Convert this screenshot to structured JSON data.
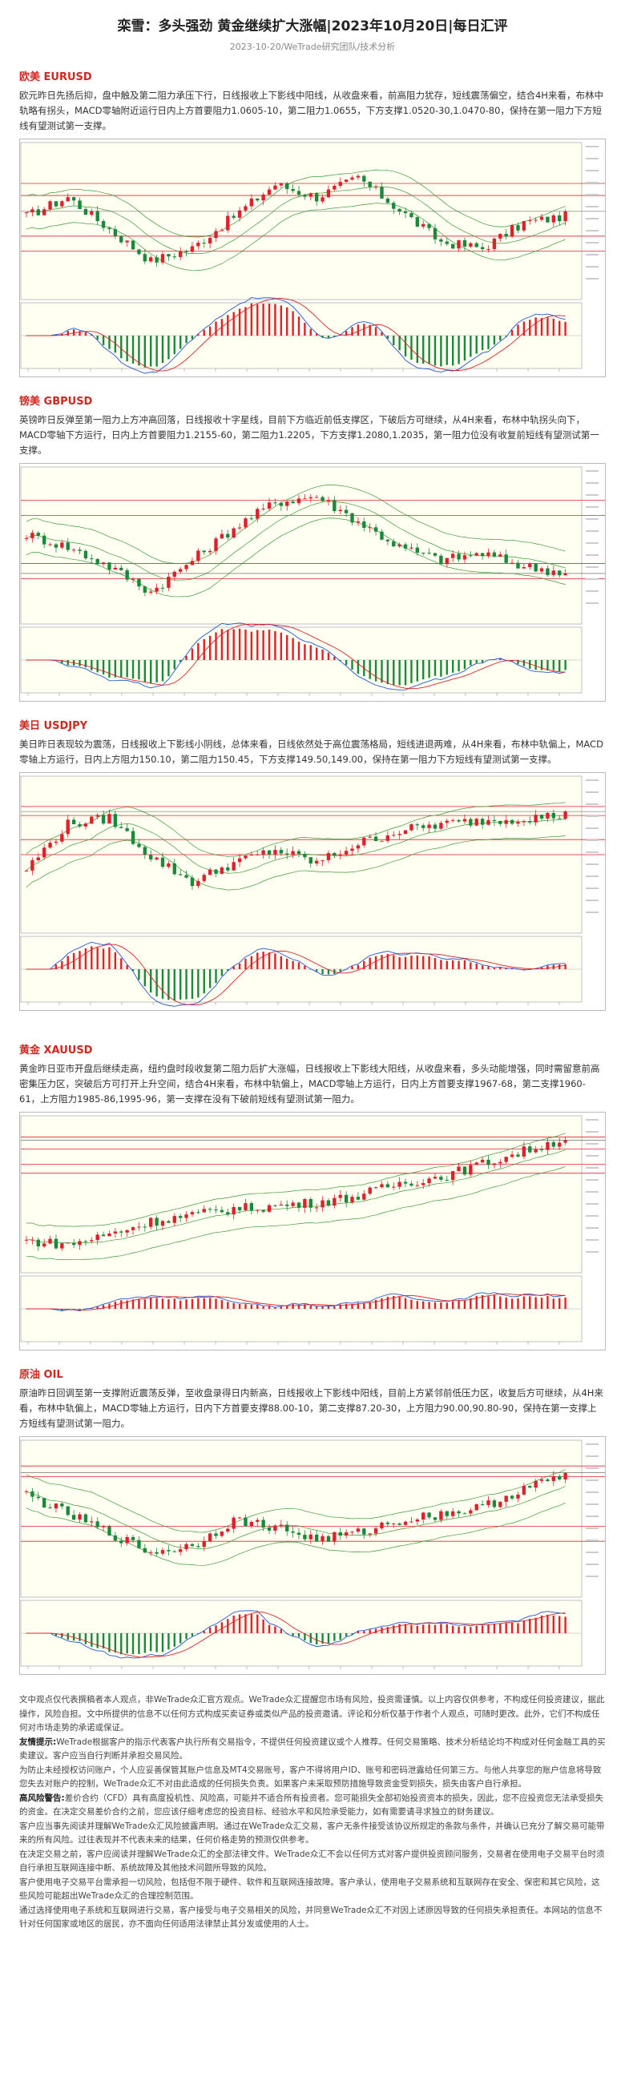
{
  "header": {
    "title": "栾雪：多头强劲 黄金继续扩大涨幅|2023年10月20日|每日汇评",
    "subtitle": "2023-10-20/WeTrade研究团队/技术分析"
  },
  "sections": [
    {
      "heading": "欧美 EURUSD",
      "text": "欧元昨日先扬后抑，盘中触及第二阻力承压下行，日线报收上下影线中阳线，从收盘来看，前高阻力犹存，短线震荡偏空，结合4H来看，布林中轨略有拐头，MACD零轴附近运行日内上方首要阻力1.0605-10，第二阻力1.0655，下方支撑1.0520-30,1.0470-80，保持在第一阻力下方短线有望测试第一支撑。"
    },
    {
      "heading": "镑美 GBPUSD",
      "text": "英镑昨日反弹至第一阻力上方冲高回落，日线报收十字星线，目前下方临近前低支撑区，下破后方可继续，从4H来看，布林中轨拐头向下，MACD零轴下方运行，日内上方首要阻力1.2155-60，第二阻力1.2205，下方支撑1.2080,1.2035，第一阻力位没有收复前短线有望测试第一支撑。"
    },
    {
      "heading": "美日 USDJPY",
      "text": "美日昨日表现较为震荡，日线报收上下影线小阴线，总体来看，日线依然处于高位震荡格局，短线进退两难，从4H来看，布林中轨偏上，MACD零轴上方运行，日内上方阻力150.10，第二阻力150.45，下方支撑149.50,149.00，保持在第一阻力下方短线有望测试第一支撑。"
    },
    {
      "heading": "黄金 XAUUSD",
      "text": "黄金昨日亚市开盘后继续走高，纽约盘时段收复第二阻力后扩大涨幅，日线报收上下影线大阳线，从收盘来看，多头动能增强，同时需留意前高密集压力区，突破后方可打开上升空间，结合4H来看，布林中轨偏上，MACD零轴上方运行，日内上方首要支撑1967-68，第二支撑1960-61，上方阻力1985-86,1995-96，第一支撑在没有下破前短线有望测试第一阻力。"
    },
    {
      "heading": "原油 OIL",
      "text": "原油昨日回调至第一支撑附近震荡反弹，至收盘录得日内新高，日线报收上下影线中阳线，目前上方紧邻前低压力区，收复后方可继续，从4H来看，布林中轨偏上，MACD零轴上方运行，日内下方首要支撑88.00-10，第二支撑87.20-30，上方阻力90.00,90.80-90，保持在第一支撑上方短线有望测试第一阻力。"
    }
  ],
  "disclaimer": [
    "文中观点仅代表撰稿者本人观点，非WeTrade众汇官方观点。WeTrade众汇提醒您市场有风险，投资需谨慎。以上内容仅供参考，不构成任何投资建议，据此操作，风险自担。文中所提供的信息不以任何方式构成买卖证券或类似产品的投资邀请。评论和分析仅基于作者个人观点，可随时更改。此外，它们不构成任何对市场走势的承诺或保证。",
    {
      "label": "友情提示:",
      "text": "WeTrade根据客户的指示代表客户执行所有交易指令，不提供任何投资建议或个人推荐。任何交易策略、技术分析结论均不构成对任何金融工具的买卖建议。客户应当自行判断并承担交易风险。"
    },
    "为防止未经授权访问账户，个人应妥善保管其账户信息及MT4交易账号，客户不得将用户ID、账号和密码泄露给任何第三方。与他人共享您的账户信息将导致您失去对账户的控制，WeTrade众汇不对由此造成的任何损失负责。如果客户未采取预防措施导致资金受到损失，损失由客户自行承担。",
    {
      "label": "高风险警告:",
      "text": "差价合约（CFD）具有高度投机性、风险高，可能并不适合所有投资者。您可能损失全部初始投资资本的损失，因此，您不应投资您无法承受损失的资金。在决定交易差价合约之前，您应该仔细考虑您的投资目标、经验水平和风险承受能力，如有需要请寻求独立的财务建议。"
    },
    "客户应当事先阅读并理解WeTrade众汇风险披露声明。通过在WeTrade众汇交易，客户无条件接受该协议所规定的条款与条件，并确认已充分了解交易可能带来的所有风险。过往表现并不代表未来的结果，任何价格走势的预测仅供参考。",
    "在决定交易之前，客户应阅读并理解WeTrade众汇的全部法律文件。WeTrade众汇不会以任何方式对客户提供投资顾问服务，交易者在使用电子交易平台时须自行承担互联网连接中断、系统故障及其他技术问题所导致的风险。",
    "客户使用电子交易平台需承担一切风险，包括但不限于硬件、软件和互联网连接故障。客户承认，使用电子交易系统和互联网存在安全、保密和其它风险，这些风险可能超出WeTrade众汇的合理控制范围。",
    "通过选择使用电子系统和互联网进行交易，客户接受与电子交易相关的风险，并同意WeTrade众汇不对因上述原因导致的任何损失承担责任。本网站的信息不针对任何国家或地区的居民，亦不面向任何适用法律禁止其分发或使用的人士。"
  ]
}
